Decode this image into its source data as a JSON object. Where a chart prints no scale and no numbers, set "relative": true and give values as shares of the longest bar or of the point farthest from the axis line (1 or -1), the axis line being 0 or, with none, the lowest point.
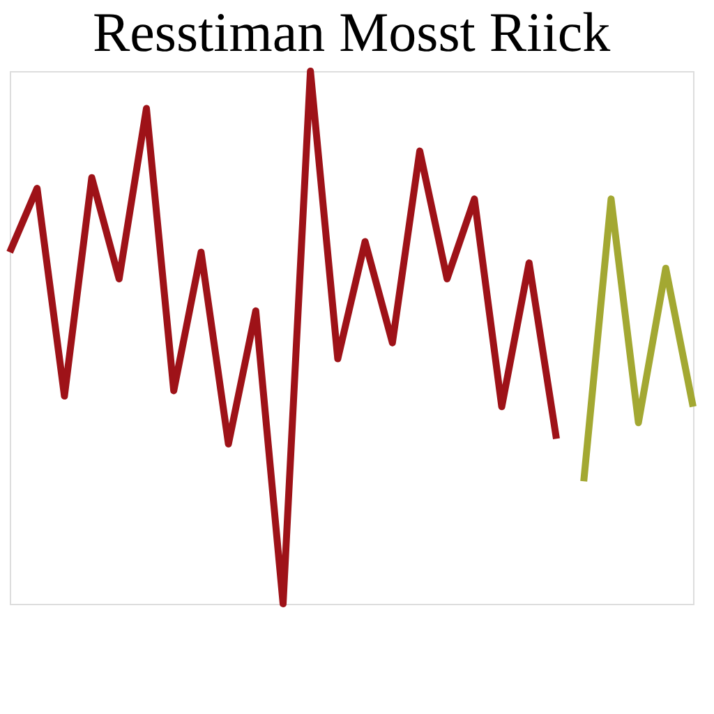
{
  "chart_data": {
    "type": "line",
    "title": "Resstiman Mosst Riick",
    "relative": true,
    "categories": [
      null,
      null,
      null,
      null,
      null,
      null,
      null,
      null,
      null,
      null,
      null,
      null,
      null,
      null,
      null,
      null,
      null,
      null,
      null,
      null,
      null,
      null,
      null,
      null,
      null,
      null
    ],
    "legend": false,
    "marker": "none",
    "line_style": "solid",
    "series": [
      {
        "color": "#9e1218",
        "values": [
          0.66,
          0.78,
          0.39,
          0.8,
          0.61,
          0.93,
          0.4,
          0.66,
          0.3,
          0.55,
          0,
          1,
          0.46,
          0.68,
          0.49,
          0.85,
          0.61,
          0.76,
          0.37,
          0.64,
          0.31,
          null,
          null,
          null,
          null,
          null
        ]
      },
      {
        "color": "#a3a832",
        "values": [
          null,
          null,
          null,
          null,
          null,
          null,
          null,
          null,
          null,
          null,
          null,
          null,
          null,
          null,
          null,
          null,
          null,
          null,
          null,
          null,
          null,
          0.23,
          0.76,
          0.34,
          0.63,
          0.37
        ]
      }
    ]
  }
}
